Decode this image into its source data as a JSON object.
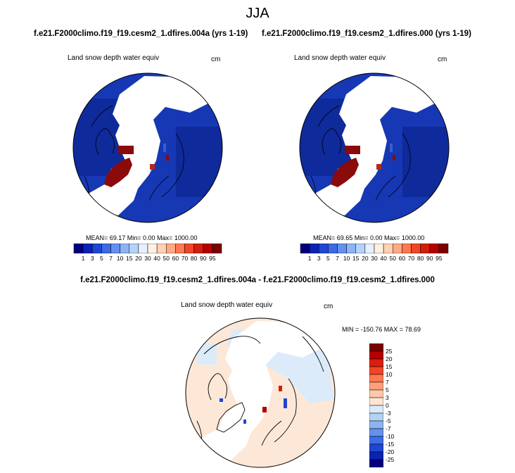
{
  "season": "JJA",
  "panels": [
    {
      "case": "f.e21.F2000climo.f19_f19.cesm2_1.dfires.004a (yrs 1-19)",
      "variable": "Land snow depth water equiv",
      "units": "cm",
      "stats": "MEAN=  69.17  Min=   0.00  Max= 1000.00"
    },
    {
      "case": "f.e21.F2000climo.f19_f19.cesm2_1.dfires.000 (yrs 1-19)",
      "variable": "Land snow depth water equiv",
      "units": "cm",
      "stats": "MEAN=  69.65  Min=   0.00  Max= 1000.00"
    }
  ],
  "difference": {
    "title": "f.e21.F2000climo.f19_f19.cesm2_1.dfires.004a - f.e21.F2000climo.f19_f19.cesm2_1.dfires.000",
    "variable": "Land snow depth water equiv",
    "units": "cm",
    "stats": "MIN = -150.76 MAX =  78.69"
  },
  "chart_data": [
    {
      "type": "heatmap",
      "title": "f.e21.F2000climo.f19_f19.cesm2_1.dfires.004a (yrs 1-19)",
      "variable": "Land snow depth water equiv",
      "units": "cm",
      "projection": "north polar stereographic",
      "mean": 69.17,
      "min": 0.0,
      "max": 1000.0,
      "colorbar_levels": [
        1,
        3,
        5,
        7,
        10,
        15,
        20,
        30,
        40,
        50,
        60,
        70,
        80,
        90,
        95
      ],
      "colorbar_labels": [
        "1",
        "3",
        "5",
        "7",
        "10",
        "15",
        "20",
        "30",
        "40",
        "50",
        "60",
        "70",
        "80",
        "90",
        "95"
      ]
    },
    {
      "type": "heatmap",
      "title": "f.e21.F2000climo.f19_f19.cesm2_1.dfires.000 (yrs 1-19)",
      "variable": "Land snow depth water equiv",
      "units": "cm",
      "projection": "north polar stereographic",
      "mean": 69.65,
      "min": 0.0,
      "max": 1000.0,
      "colorbar_levels": [
        1,
        3,
        5,
        7,
        10,
        15,
        20,
        30,
        40,
        50,
        60,
        70,
        80,
        90,
        95
      ],
      "colorbar_labels": [
        "1",
        "3",
        "5",
        "7",
        "10",
        "15",
        "20",
        "30",
        "40",
        "50",
        "60",
        "70",
        "80",
        "90",
        "95"
      ]
    },
    {
      "type": "heatmap",
      "title": "f.e21.F2000climo.f19_f19.cesm2_1.dfires.004a - f.e21.F2000climo.f19_f19.cesm2_1.dfires.000",
      "variable": "Land snow depth water equiv",
      "units": "cm",
      "projection": "north polar stereographic",
      "min": -150.76,
      "max": 78.69,
      "colorbar_levels": [
        25,
        20,
        15,
        10,
        7,
        5,
        3,
        0,
        -3,
        -5,
        -7,
        -10,
        -15,
        -20,
        -25
      ],
      "colorbar_labels": [
        "25",
        "20",
        "15",
        "10",
        "7",
        "5",
        "3",
        "0",
        "-3",
        "-5",
        "-7",
        "-10",
        "-15",
        "-20",
        "-25"
      ]
    }
  ],
  "colors": {
    "abs_scale": [
      "#00007f",
      "#0a23b4",
      "#1e46d2",
      "#3c69e6",
      "#6491f0",
      "#8cb4f5",
      "#b4d2fa",
      "#e6f0ff",
      "#fff0e1",
      "#ffd2b4",
      "#ffaa82",
      "#ff7850",
      "#f04628",
      "#d21e0a",
      "#b40000",
      "#7d0000"
    ],
    "diff_scale": [
      "#7d0000",
      "#b40000",
      "#dc1e0a",
      "#f04628",
      "#ff7850",
      "#ffa07d",
      "#ffc8aa",
      "#ffe6d2",
      "#dcebfa",
      "#b4d2f5",
      "#8cb4f0",
      "#6491eb",
      "#3c6ee6",
      "#1e46d2",
      "#0a23b4",
      "#00007f"
    ],
    "map_abs_base": "#1638b4",
    "map_diff_base": "#fde8d8"
  }
}
